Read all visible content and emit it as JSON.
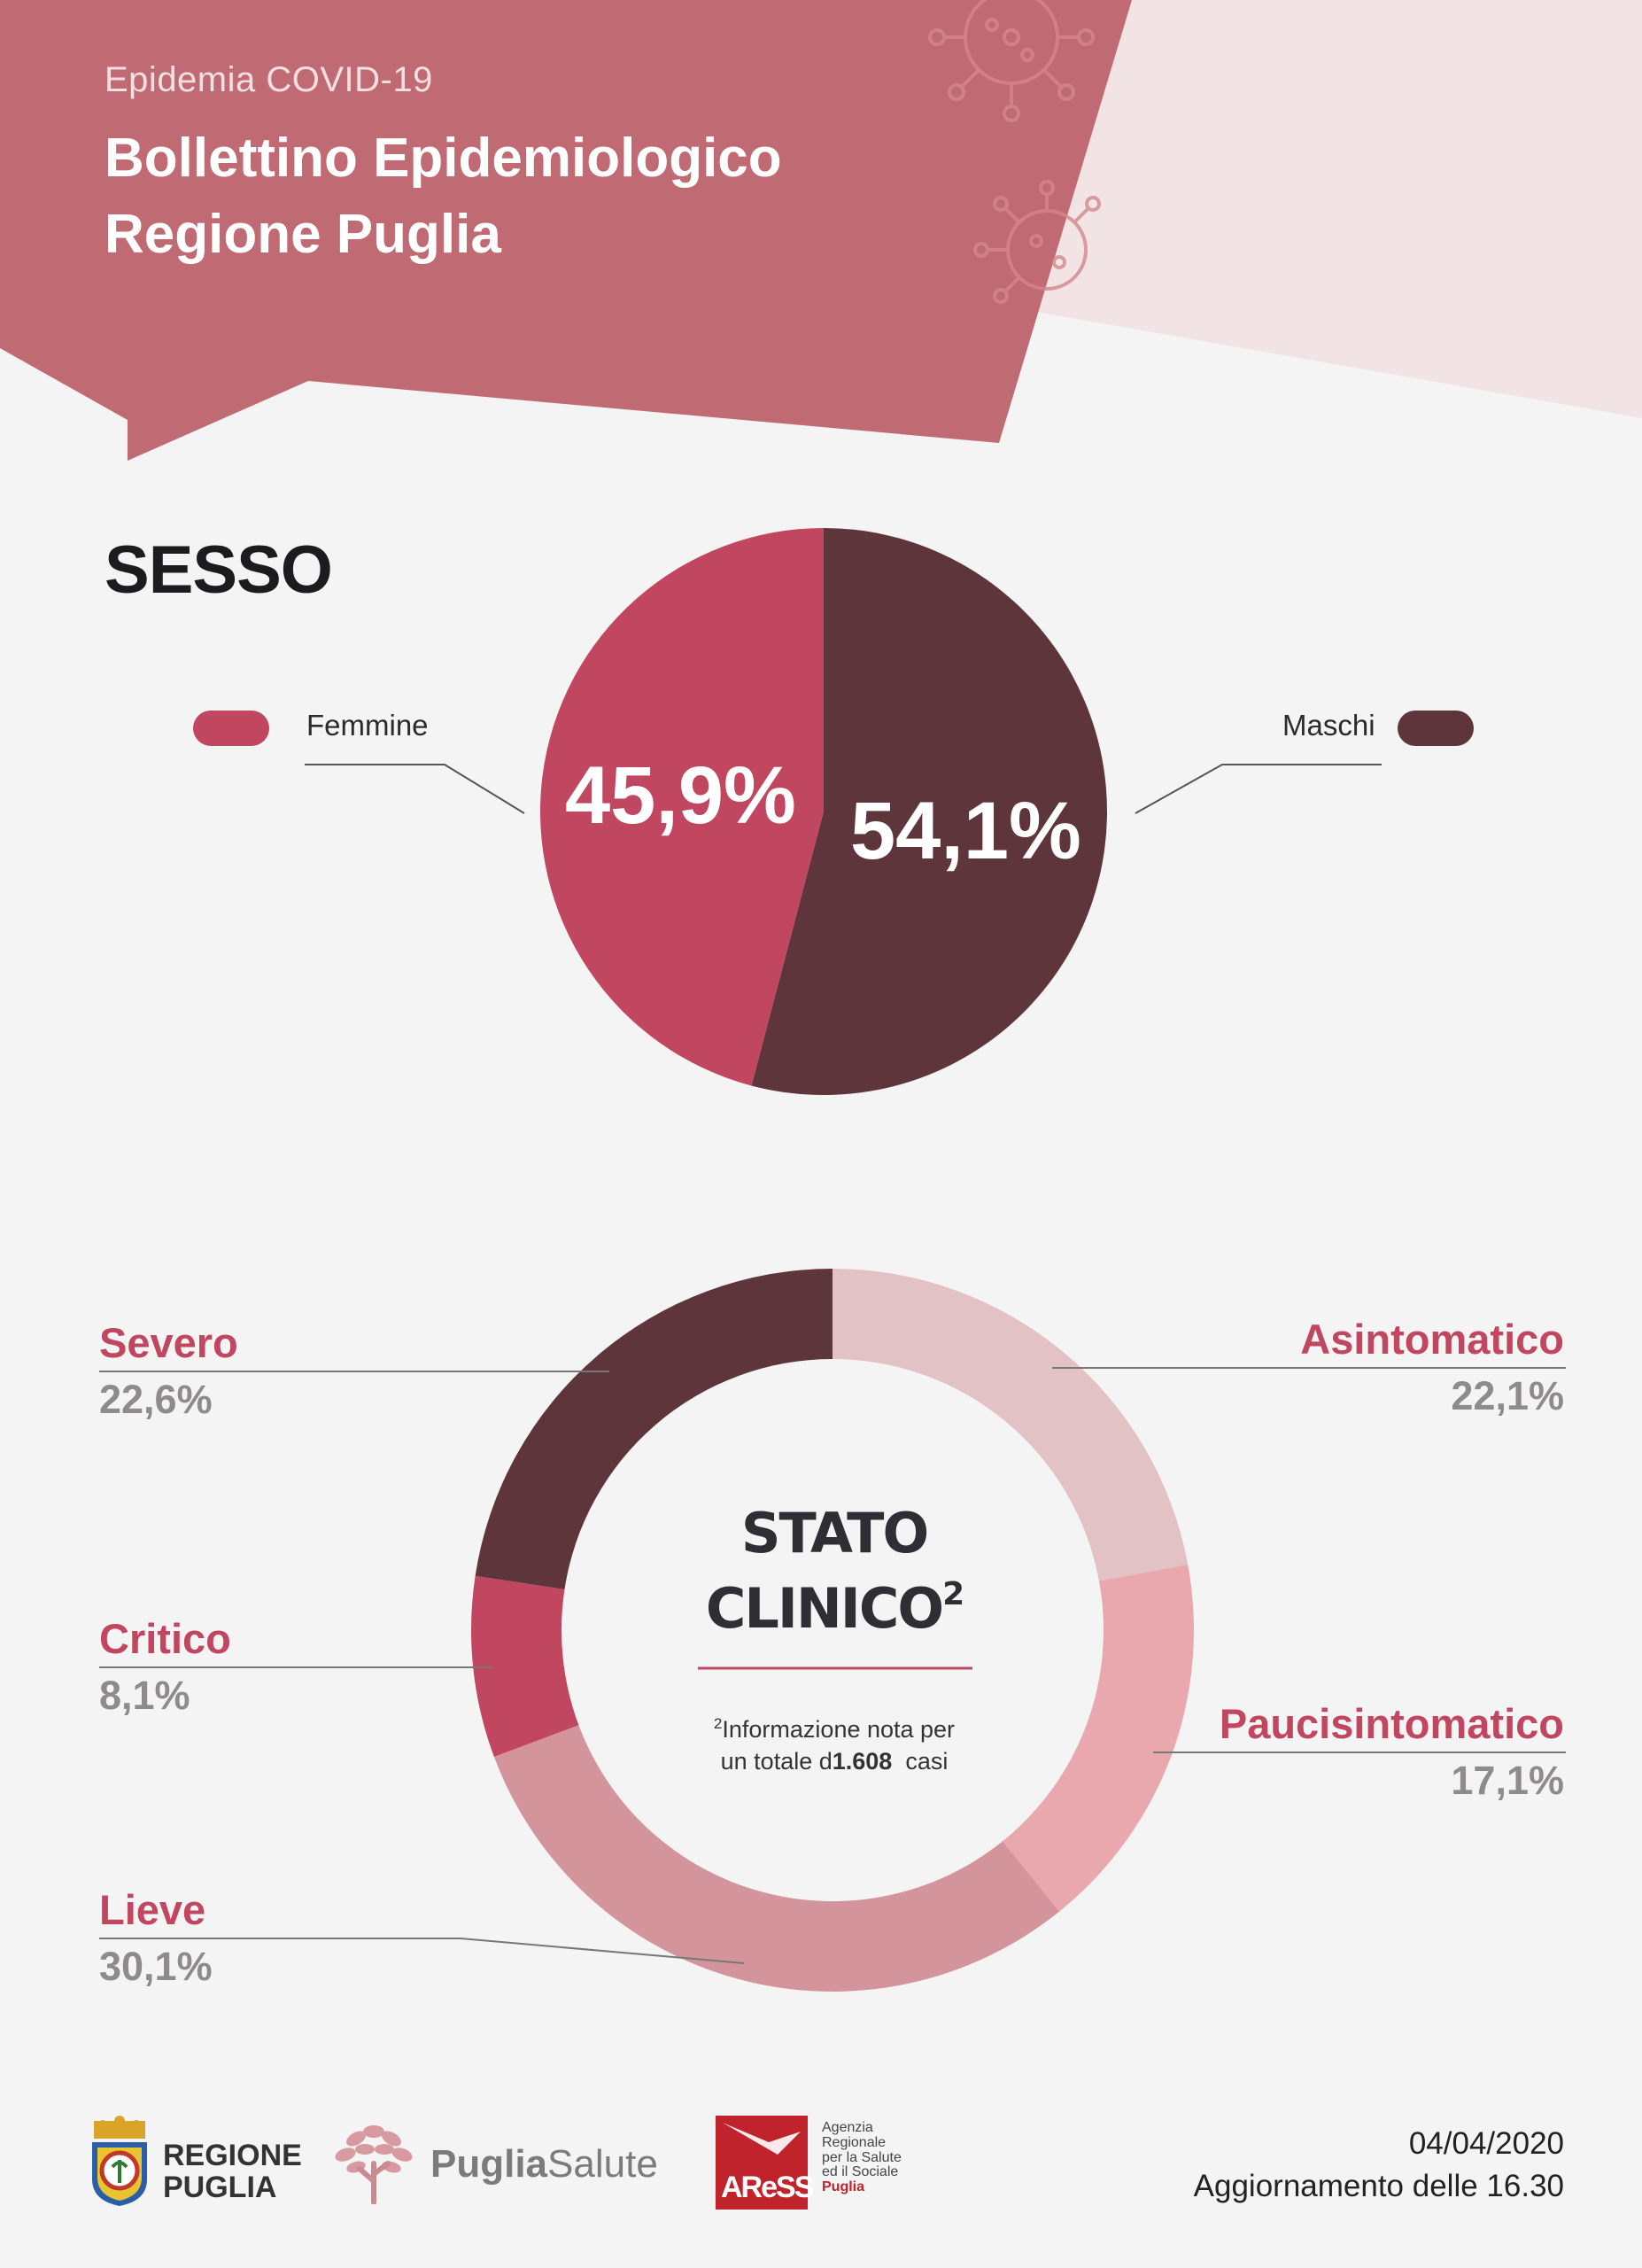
{
  "header": {
    "subtitle": "Epidemia COVID-19",
    "title_line1": "Bollettino Epidemiologico",
    "title_line2": "Regione Puglia"
  },
  "colors": {
    "header_red": "#c06b73",
    "header_light": "#f2e4e4",
    "femmine": "#c0475f",
    "maschi": "#5e353b",
    "asintomatico": "#e3c2c5",
    "paucisintomatico": "#e8a8ae",
    "lieve": "#d3959b",
    "critico": "#c0475f",
    "severo": "#5e353b",
    "segment_text": "#c0475f",
    "value_text": "#8d8b8c"
  },
  "chart_data": [
    {
      "type": "pie",
      "title": "SESSO",
      "slices": [
        {
          "name": "Maschi",
          "value": 54.1,
          "label": "54,1%",
          "color": "#5e353b"
        },
        {
          "name": "Femmine",
          "value": 45.9,
          "label": "45,9%",
          "color": "#c0475f"
        }
      ],
      "legend_placement": "left and right of pie"
    },
    {
      "type": "pie",
      "style": "donut",
      "title": "STATO CLINICO",
      "title_superscript": "2",
      "note_superscript": "2",
      "note_line1": "Informazione nota per",
      "note_line2": "un totale d",
      "note_number": "1.608",
      "note_line2_end": "casi",
      "slices": [
        {
          "name": "Asintomatico",
          "value": 22.1,
          "label": "22,1%",
          "color": "#e3c2c5"
        },
        {
          "name": "Paucisintomatico",
          "value": 17.1,
          "label": "17,1%",
          "color": "#e8a8ae"
        },
        {
          "name": "Lieve",
          "value": 30.1,
          "label": "30,1%",
          "color": "#d3959b"
        },
        {
          "name": "Critico",
          "value": 8.1,
          "label": "8,1%",
          "color": "#c0475f"
        },
        {
          "name": "Severo",
          "value": 22.6,
          "label": "22,6%",
          "color": "#5e353b"
        }
      ]
    }
  ],
  "footer": {
    "regione_line1": "REGIONE",
    "regione_line2": "PUGLIA",
    "puglia": "Puglia",
    "salute": "Salute",
    "aress_logo": "AReSS",
    "aress_line1": "Agenzia",
    "aress_line2": "Regionale",
    "aress_line3": "per la Salute",
    "aress_line4": "ed il Sociale",
    "aress_line5": "Puglia",
    "date": "04/04/2020",
    "update": "Aggiornamento delle 16.30"
  }
}
